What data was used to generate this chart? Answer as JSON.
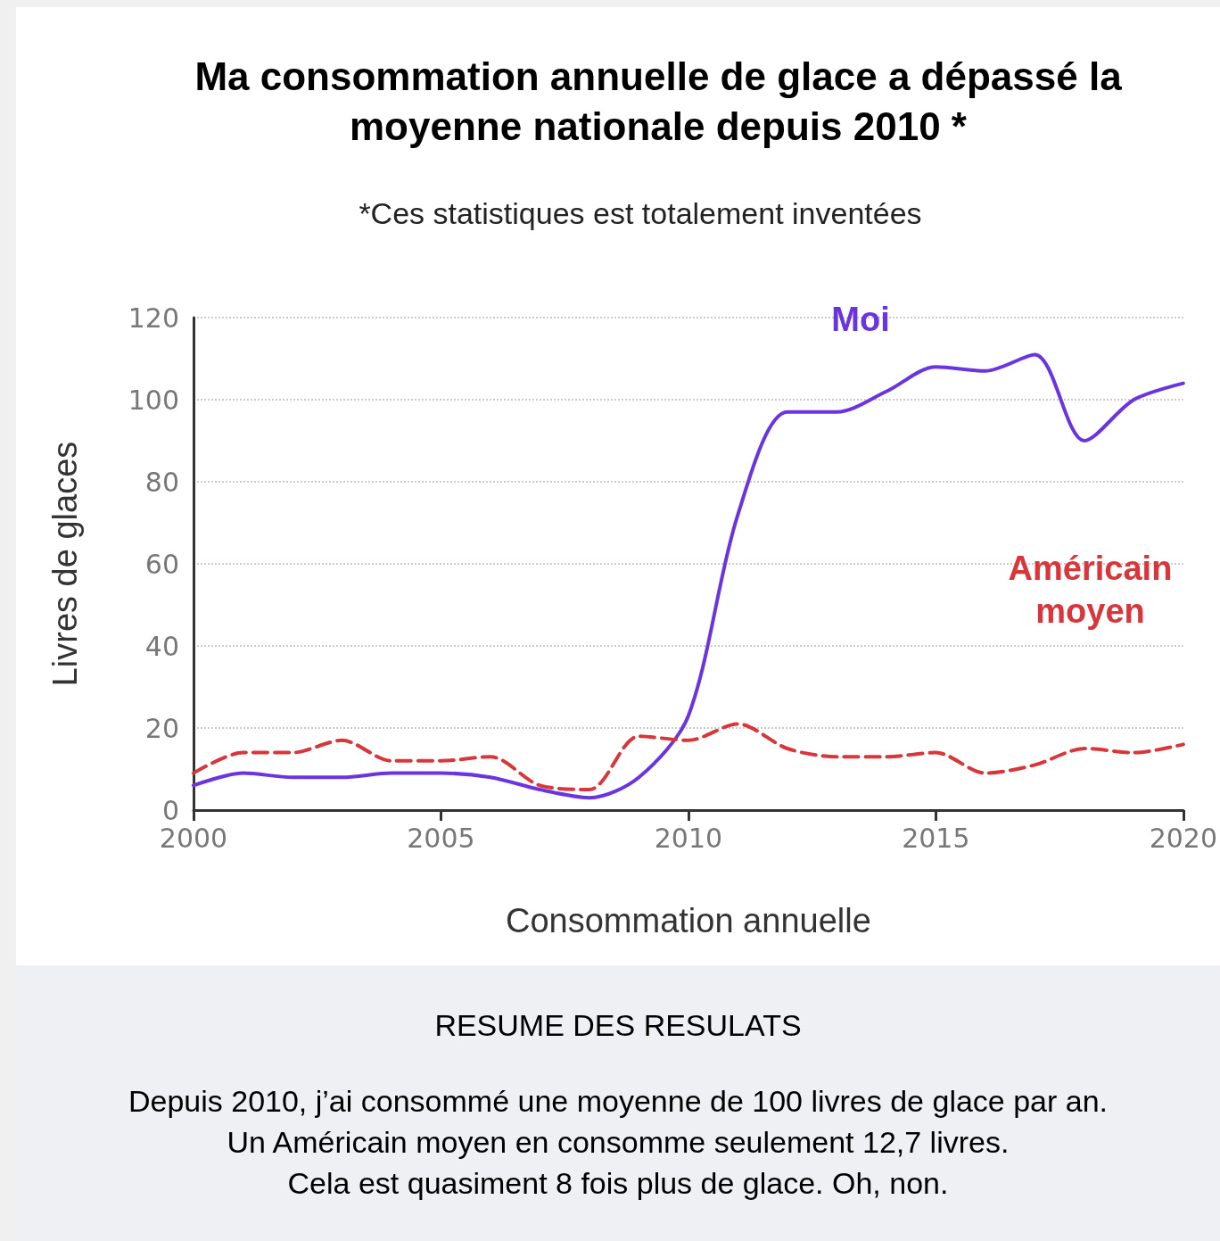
{
  "chart_data": {
    "type": "line",
    "title": "Ma consommation annuelle de glace a dépassé la moyenne nationale depuis 2010 *",
    "subtitle": "*Ces statistiques est totalement inventées",
    "xlabel": "Consommation annuelle",
    "ylabel": "Livres de glaces",
    "x": [
      2000,
      2001,
      2002,
      2003,
      2004,
      2005,
      2006,
      2007,
      2008,
      2009,
      2010,
      2011,
      2012,
      2013,
      2014,
      2015,
      2016,
      2017,
      2018,
      2019,
      2020
    ],
    "series": [
      {
        "name": "Moi",
        "color": "#6a35e0",
        "line_style": "solid",
        "values": [
          6,
          9,
          8,
          8,
          9,
          9,
          8,
          5,
          3,
          8,
          23,
          72,
          97,
          97,
          102,
          108,
          107,
          111,
          90,
          100,
          104
        ]
      },
      {
        "name": "Américain moyen",
        "color": "#d8363a",
        "line_style": "dashed",
        "values": [
          9,
          14,
          14,
          17,
          12,
          12,
          13,
          6,
          5,
          18,
          17,
          21,
          15,
          13,
          13,
          14,
          9,
          11,
          15,
          14,
          16
        ]
      }
    ],
    "xlim": [
      2000,
      2020
    ],
    "xticks": [
      2000,
      2005,
      2010,
      2015,
      2020
    ],
    "ylim": [
      0,
      120
    ],
    "yticks": [
      0,
      20,
      40,
      60,
      80,
      100,
      120
    ],
    "grid": "y",
    "marker": "none",
    "legend": false,
    "annotations": [
      "RESUME DES RESULATS",
      "Depuis 2010, j’ai consommé une moyenne de 100 livres de glace par an.",
      "Un Américain moyen en consomme seulement 12,7 livres.",
      "Cela est quasiment 8 fois plus de glace. Oh, non."
    ]
  }
}
